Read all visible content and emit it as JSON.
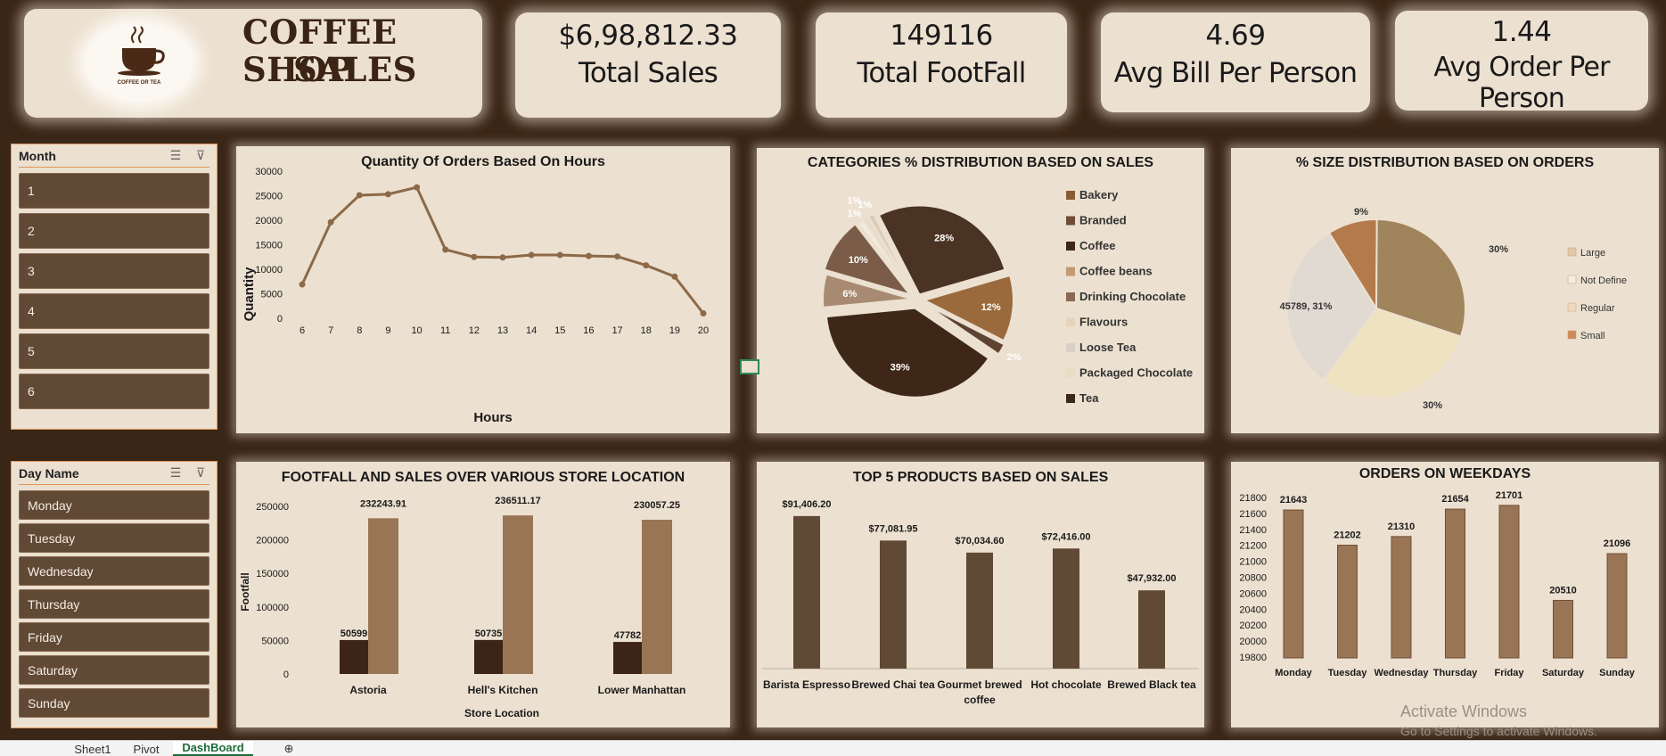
{
  "header": {
    "title_line1": "COFFEE SHOP",
    "title_line2": "SALES",
    "logo_text": "COFFEE OR TEA"
  },
  "kpis": [
    {
      "value": "$6,98,812.33",
      "label": "Total Sales"
    },
    {
      "value": "149116",
      "label": "Total FootFall"
    },
    {
      "value": "4.69",
      "label": "Avg Bill Per Person"
    },
    {
      "value": "1.44",
      "label": "Avg Order Per Person"
    }
  ],
  "slicers": {
    "month": {
      "title": "Month",
      "items": [
        "1",
        "2",
        "3",
        "4",
        "5",
        "6"
      ]
    },
    "day": {
      "title": "Day Name",
      "items": [
        "Monday",
        "Tuesday",
        "Wednesday",
        "Thursday",
        "Friday",
        "Saturday",
        "Sunday"
      ]
    }
  },
  "colors": {
    "background": "#3a2616",
    "card": "#ece0d0",
    "bar_dark": "#604935",
    "bar_light": "#997556",
    "bar_darkest": "#3c2516",
    "line": "#8c6a48"
  },
  "charts": {
    "hours": {
      "title": "Quantity Of Orders Based On Hours",
      "xlabel": "Hours",
      "ylabel": "Quantity",
      "yticks": [
        "0",
        "5000",
        "10000",
        "15000",
        "20000",
        "25000",
        "30000"
      ]
    },
    "categories": {
      "title": "CATEGORIES % DISTRIBUTION BASED ON SALES",
      "legend": [
        "Bakery",
        "Branded",
        "Coffee",
        "Coffee beans",
        "Drinking Chocolate",
        "Flavours",
        "Loose Tea",
        "Packaged Chocolate",
        "Tea"
      ]
    },
    "sizes": {
      "title": "% SIZE DISTRIBUTION BASED ON ORDERS",
      "legend": [
        "Large",
        "Not Define",
        "Regular",
        "Small"
      ]
    },
    "footfall": {
      "title": "FOOTFALL AND SALES OVER VARIOUS STORE LOCATION",
      "xlabel": "Store Location",
      "ylabel": "Footfall",
      "yticks": [
        "0",
        "50000",
        "100000",
        "150000",
        "200000",
        "250000"
      ]
    },
    "products": {
      "title": "TOP 5 PRODUCTS BASED ON SALES"
    },
    "weekdays": {
      "title": "ORDERS ON WEEKDAYS",
      "yticks": [
        "19800",
        "20000",
        "20200",
        "20400",
        "20600",
        "20800",
        "21000",
        "21200",
        "21400",
        "21600",
        "21800"
      ]
    }
  },
  "chart_data": [
    {
      "type": "line",
      "title": "Quantity Of Orders Based On Hours",
      "xlabel": "Hours",
      "ylabel": "Quantity",
      "x": [
        6,
        7,
        8,
        9,
        10,
        11,
        12,
        13,
        14,
        15,
        16,
        17,
        18,
        19,
        20
      ],
      "y": [
        6900,
        19600,
        25100,
        25300,
        26700,
        14000,
        12500,
        12400,
        12900,
        12900,
        12700,
        12600,
        10800,
        8500,
        1000
      ],
      "ylim": [
        0,
        30000
      ]
    },
    {
      "type": "pie",
      "title": "CATEGORIES % DISTRIBUTION BASED ON SALES",
      "labels": [
        "Tea",
        "Coffee beans",
        "Drinking Chocolate",
        "Flavours",
        "Loose Tea",
        "Packaged Chocolate",
        "Bakery",
        "Coffee",
        "Branded"
      ],
      "values": [
        28,
        12,
        2,
        39,
        6,
        10,
        1,
        1,
        1
      ],
      "data_labels": [
        "28%",
        "12%",
        "2%",
        "39%",
        "6%",
        "10%",
        "1%",
        "1%",
        "1%"
      ]
    },
    {
      "type": "pie",
      "title": "% SIZE DISTRIBUTION BASED ON ORDERS",
      "labels": [
        "Not Define",
        "Large",
        "Regular",
        "Small"
      ],
      "values": [
        9,
        30,
        30,
        31
      ],
      "data_labels": [
        "9%",
        "30%",
        "30%",
        "45789, 31%"
      ]
    },
    {
      "type": "bar",
      "title": "FOOTFALL AND SALES OVER VARIOUS STORE LOCATION",
      "xlabel": "Store Location",
      "ylabel": "Footfall",
      "categories": [
        "Astoria",
        "Hell's Kitchen",
        "Lower Manhattan"
      ],
      "series": [
        {
          "values": [
            50599,
            50735,
            47782
          ]
        },
        {
          "values": [
            232243.91,
            236511.17,
            230057.25
          ]
        }
      ],
      "ylim": [
        0,
        250000
      ]
    },
    {
      "type": "bar",
      "title": "TOP 5 PRODUCTS BASED ON SALES",
      "categories": [
        "Barista Espresso",
        "Brewed Chai tea",
        "Gourmet brewed coffee",
        "Hot chocolate",
        "Brewed Black tea"
      ],
      "values": [
        91406.2,
        77081.95,
        70034.6,
        72416.0,
        47932.0
      ],
      "data_labels": [
        "$91,406.20",
        "$77,081.95",
        "$70,034.60",
        "$72,416.00",
        "$47,932.00"
      ]
    },
    {
      "type": "bar",
      "title": "ORDERS ON WEEKDAYS",
      "categories": [
        "Monday",
        "Tuesday",
        "Wednesday",
        "Thursday",
        "Friday",
        "Saturday",
        "Sunday"
      ],
      "values": [
        21643,
        21202,
        21310,
        21654,
        21701,
        20510,
        21096
      ],
      "ylim": [
        19800,
        21800
      ]
    }
  ],
  "tabs": [
    "Sheet1",
    "Pivot",
    "DashBoard"
  ],
  "watermark": {
    "line1": "Activate Windows",
    "line2": "Go to Settings to activate Windows."
  }
}
